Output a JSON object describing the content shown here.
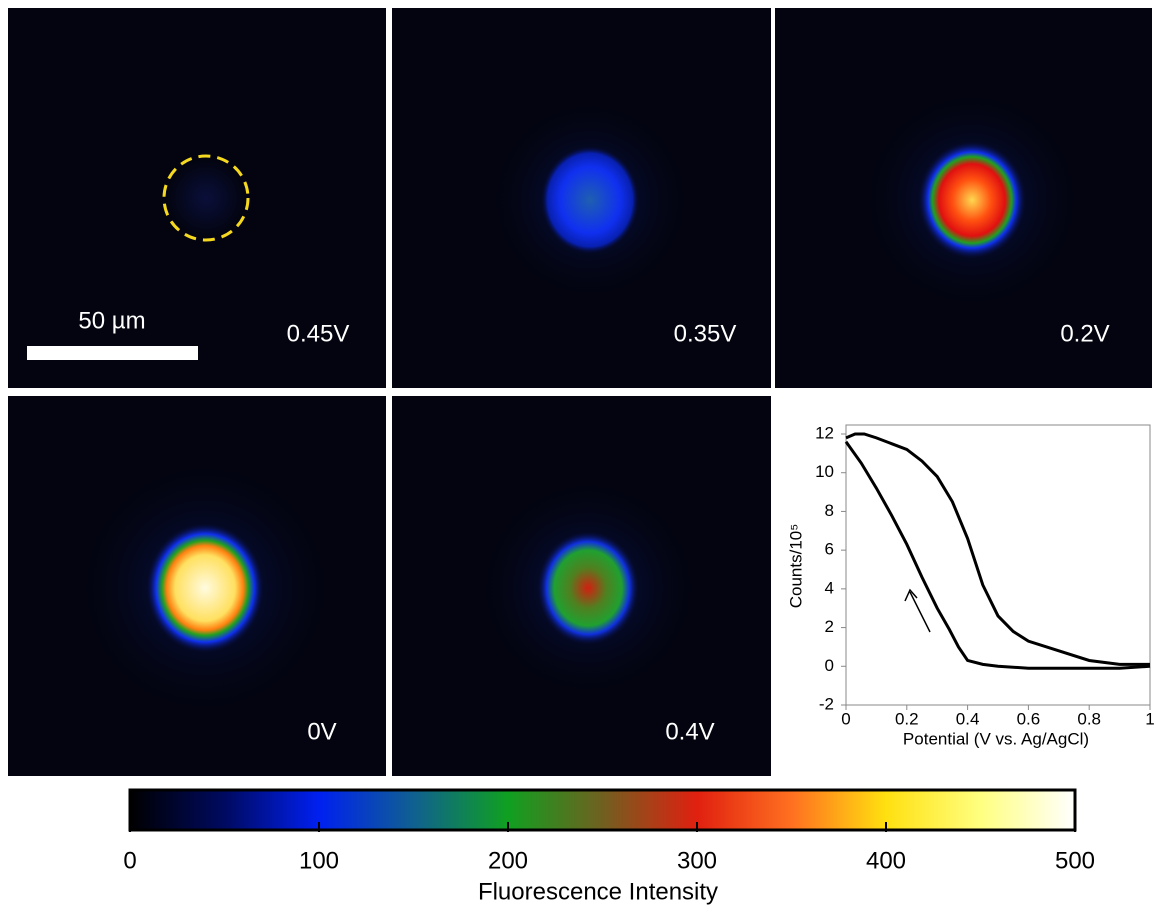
{
  "panels": [
    {
      "label": "0.45V"
    },
    {
      "label": "0.35V"
    },
    {
      "label": "0.2V"
    },
    {
      "label": "0V"
    },
    {
      "label": "0.4V"
    }
  ],
  "scale_bar": {
    "label": "50 µm"
  },
  "chart_data": [
    {
      "type": "line",
      "xlabel": "Potential (V vs. Ag/AgCl)",
      "ylabel": "Counts/10⁵",
      "xlim": [
        0,
        1
      ],
      "ylim": [
        -2,
        12
      ],
      "xticks": [
        0,
        0.2,
        0.4,
        0.6,
        0.8,
        1
      ],
      "yticks": [
        -2,
        0,
        2,
        4,
        6,
        8,
        10,
        12
      ],
      "series": [
        {
          "color": "#000000",
          "x": [
            0,
            0.03,
            0.06,
            0.1,
            0.15,
            0.2,
            0.25,
            0.3,
            0.35,
            0.4,
            0.45,
            0.5,
            0.55,
            0.6,
            0.7,
            0.8,
            0.9,
            1
          ],
          "values": [
            11.8,
            12,
            12,
            11.8,
            11.5,
            11.2,
            10.6,
            9.8,
            8.5,
            6.6,
            4.2,
            2.6,
            1.8,
            1.3,
            0.8,
            0.3,
            0.1,
            0.1
          ]
        },
        {
          "color": "#000000",
          "x": [
            1,
            0.9,
            0.8,
            0.7,
            0.6,
            0.5,
            0.45,
            0.4,
            0.37,
            0.34,
            0.3,
            0.25,
            0.2,
            0.15,
            0.1,
            0.05,
            0
          ],
          "values": [
            0,
            -0.1,
            -0.1,
            -0.1,
            -0.1,
            0,
            0.1,
            0.3,
            1,
            1.9,
            3,
            4.6,
            6.3,
            7.8,
            9.2,
            10.5,
            11.6
          ]
        }
      ]
    },
    {
      "type": "colorbar",
      "xlabel": "Fluorescence Intensity",
      "xlim": [
        0,
        500
      ],
      "xticks": [
        0,
        100,
        200,
        300,
        400,
        500
      ]
    }
  ]
}
